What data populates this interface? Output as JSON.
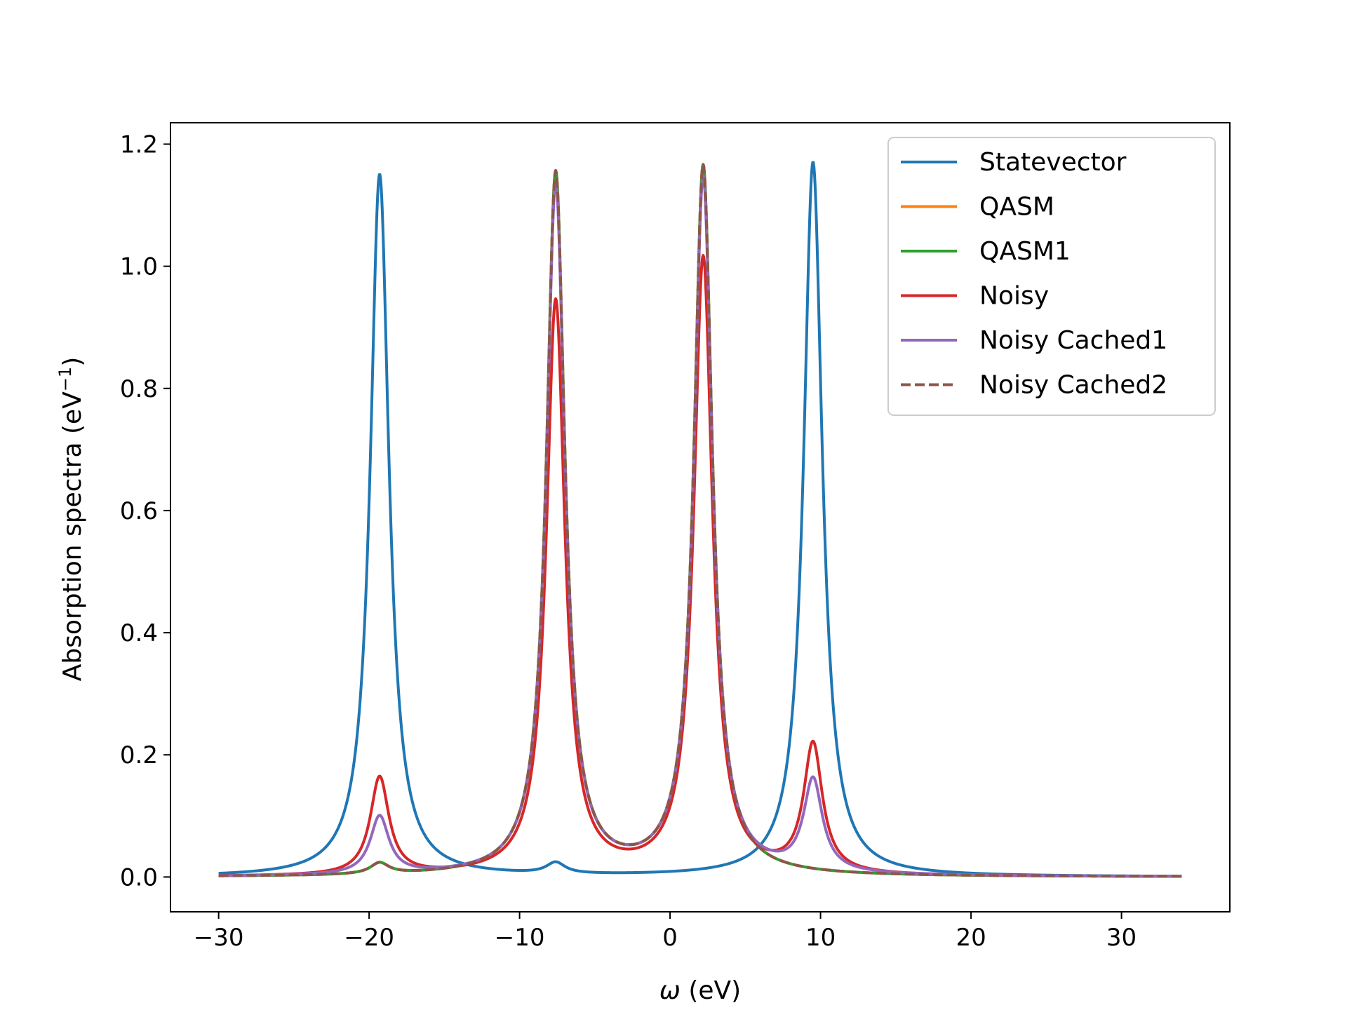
{
  "chart_data": {
    "type": "line",
    "title": "",
    "xlabel_symbol": "ω",
    "xlabel_rest": " (eV)",
    "ylabel": "Absorption spectra (eV",
    "ylabel_sup": "−1",
    "ylabel_close": ")",
    "xlim": [
      -33.2,
      37.2
    ],
    "ylim": [
      -0.057,
      1.235
    ],
    "x_ticks": [
      -30,
      -20,
      -10,
      0,
      10,
      20,
      30
    ],
    "x_tick_labels": [
      "−30",
      "−20",
      "−10",
      "0",
      "10",
      "20",
      "30"
    ],
    "y_ticks": [
      0.0,
      0.2,
      0.4,
      0.6,
      0.8,
      1.0,
      1.2
    ],
    "y_tick_labels": [
      "0.0",
      "0.2",
      "0.4",
      "0.6",
      "0.8",
      "1.0",
      "1.2"
    ],
    "x_range": [
      -30,
      34
    ],
    "grid": false,
    "legend_position": "top-right",
    "series": [
      {
        "name": "Statevector",
        "color": "#1f77b4",
        "dash": "solid",
        "gamma": 0.75,
        "peaks": [
          {
            "center": -19.3,
            "height": 1.15
          },
          {
            "center": -7.6,
            "height": 0.018
          },
          {
            "center": 9.5,
            "height": 1.17
          }
        ]
      },
      {
        "name": "QASM",
        "color": "#ff7f0e",
        "dash": "solid",
        "gamma": 0.75,
        "peaks": [
          {
            "center": -19.3,
            "height": 0.018
          },
          {
            "center": -7.6,
            "height": 1.15
          },
          {
            "center": 2.2,
            "height": 1.16
          },
          {
            "center": 9.5,
            "height": 0.0
          }
        ]
      },
      {
        "name": "QASM1",
        "color": "#2ca02c",
        "dash": "solid",
        "gamma": 0.75,
        "peaks": [
          {
            "center": -19.3,
            "height": 0.018
          },
          {
            "center": -7.6,
            "height": 1.15
          },
          {
            "center": 2.2,
            "height": 1.16
          },
          {
            "center": 9.5,
            "height": 0.0
          }
        ]
      },
      {
        "name": "Noisy",
        "color": "#d62728",
        "dash": "solid",
        "gamma": 0.75,
        "peaks": [
          {
            "center": -19.3,
            "height": 0.16
          },
          {
            "center": -7.6,
            "height": 0.94
          },
          {
            "center": 2.2,
            "height": 1.01
          },
          {
            "center": 9.5,
            "height": 0.21
          }
        ]
      },
      {
        "name": "Noisy Cached1",
        "color": "#9467bd",
        "dash": "solid",
        "gamma": 0.75,
        "peaks": [
          {
            "center": -19.3,
            "height": 0.095
          },
          {
            "center": -7.6,
            "height": 1.13
          },
          {
            "center": 2.2,
            "height": 1.14
          },
          {
            "center": 9.5,
            "height": 0.15
          }
        ]
      },
      {
        "name": "Noisy Cached2",
        "color": "#8c564b",
        "dash": "dashed",
        "gamma": 0.75,
        "peaks": [
          {
            "center": -19.3,
            "height": 0.018
          },
          {
            "center": -7.6,
            "height": 1.15
          },
          {
            "center": 2.2,
            "height": 1.16
          },
          {
            "center": 9.5,
            "height": 0.0
          }
        ]
      }
    ]
  }
}
